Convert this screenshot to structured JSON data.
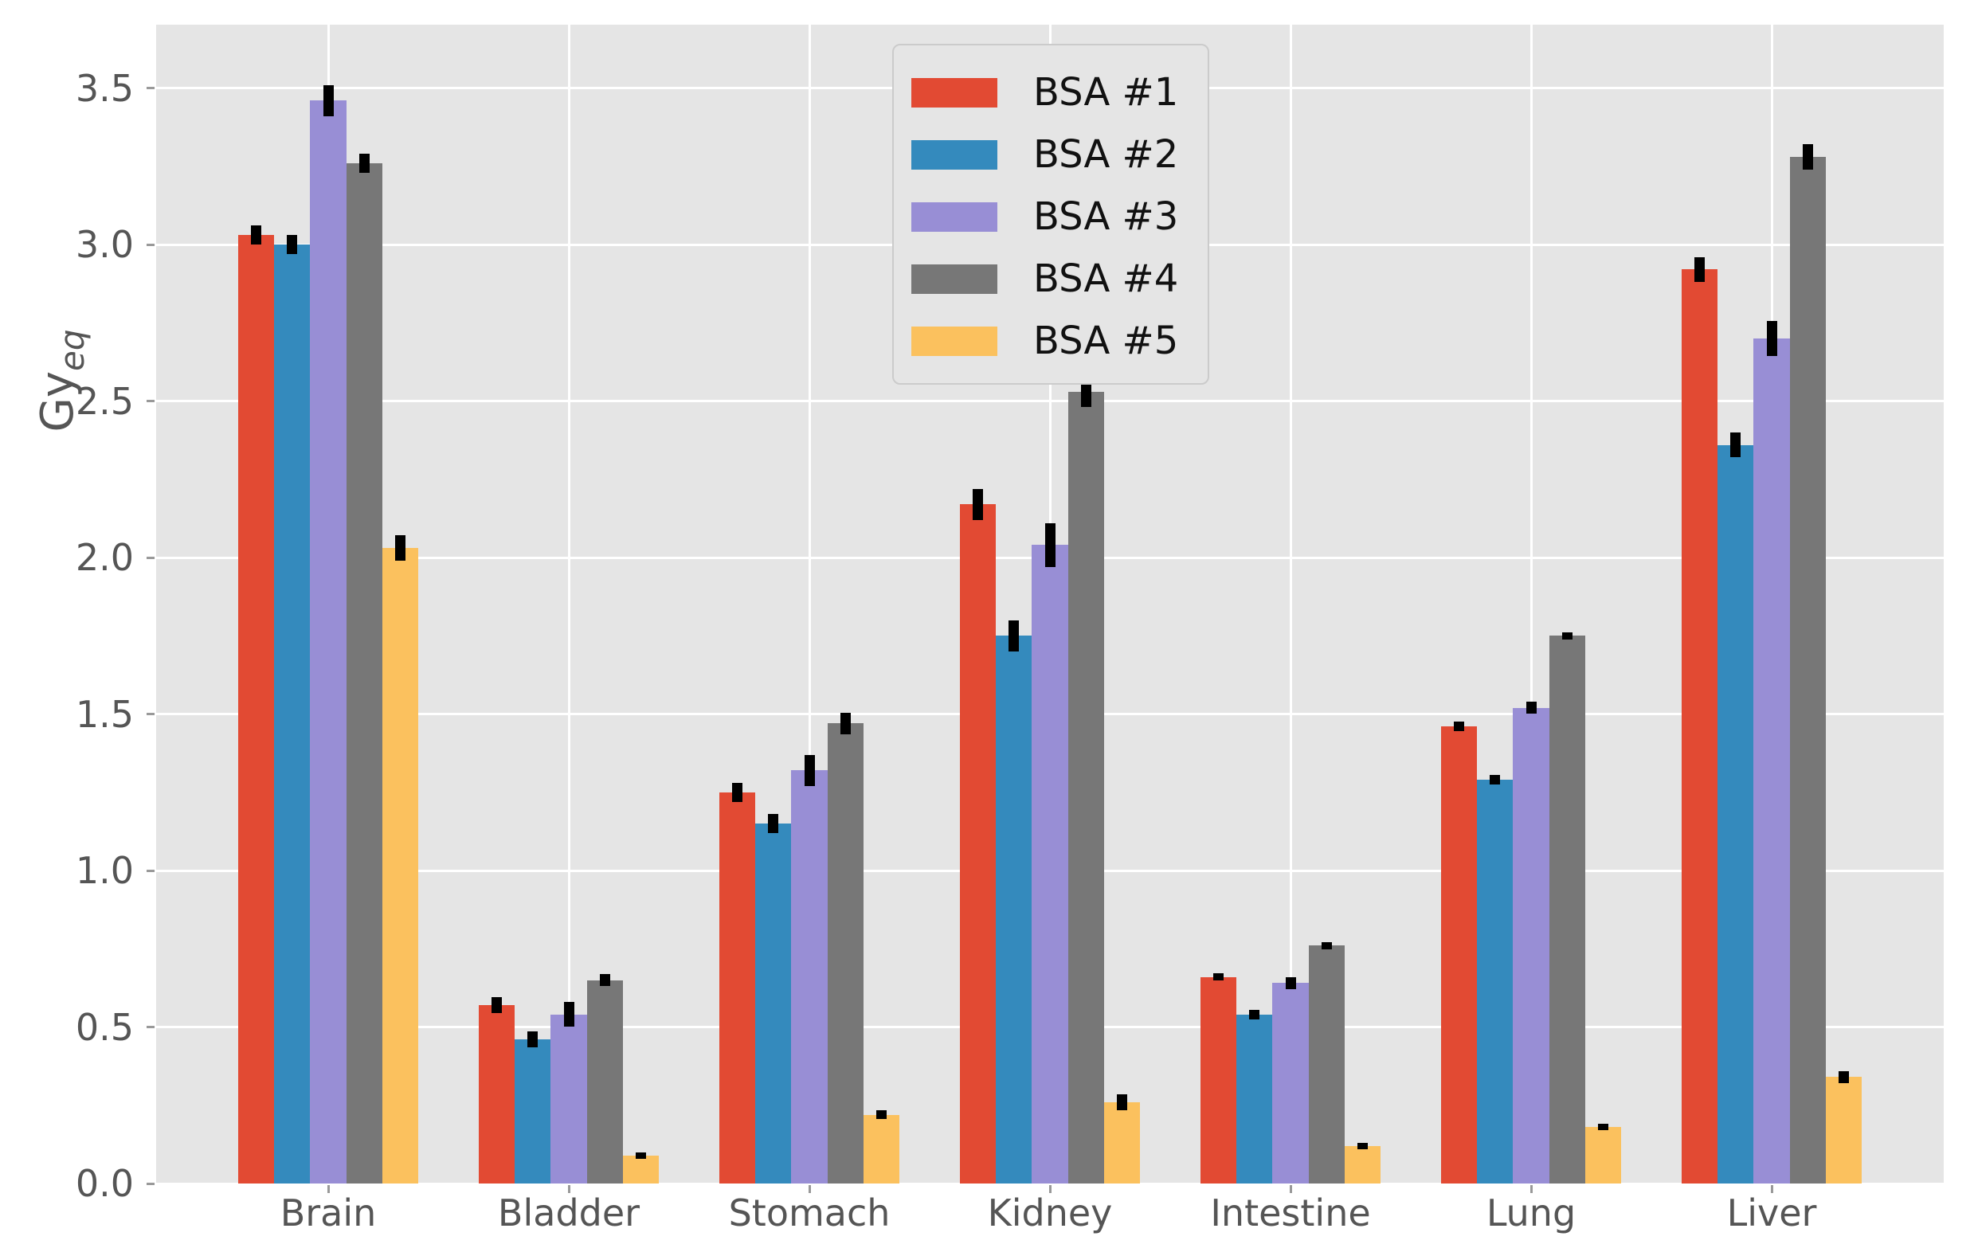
{
  "chart_data": {
    "type": "bar",
    "title": "",
    "xlabel": "",
    "ylabel": "Gy_eq",
    "ylabel_main": "Gy",
    "ylabel_sub": "eq",
    "categories": [
      "Brain",
      "Bladder",
      "Stomach",
      "Kidney",
      "Intestine",
      "Lung",
      "Liver"
    ],
    "series": [
      {
        "name": "BSA #1",
        "color": "#e24a33",
        "values": [
          3.03,
          0.57,
          1.25,
          2.17,
          0.66,
          1.46,
          2.92
        ],
        "errors": [
          0.03,
          0.025,
          0.03,
          0.05,
          0.012,
          0.015,
          0.04
        ]
      },
      {
        "name": "BSA #2",
        "color": "#348abd",
        "values": [
          3.0,
          0.46,
          1.15,
          1.75,
          0.54,
          1.29,
          2.36
        ],
        "errors": [
          0.03,
          0.025,
          0.03,
          0.05,
          0.015,
          0.015,
          0.04
        ]
      },
      {
        "name": "BSA #3",
        "color": "#988ed5",
        "values": [
          3.46,
          0.54,
          1.32,
          2.04,
          0.64,
          1.52,
          2.7
        ],
        "errors": [
          0.05,
          0.04,
          0.05,
          0.07,
          0.02,
          0.02,
          0.055
        ]
      },
      {
        "name": "BSA #4",
        "color": "#777777",
        "values": [
          3.26,
          0.65,
          1.47,
          2.53,
          0.76,
          1.75,
          3.28
        ],
        "errors": [
          0.03,
          0.02,
          0.035,
          0.05,
          0.012,
          0.012,
          0.04
        ]
      },
      {
        "name": "BSA #5",
        "color": "#fbc15e",
        "values": [
          2.03,
          0.09,
          0.22,
          0.26,
          0.12,
          0.18,
          0.34
        ],
        "errors": [
          0.04,
          0.01,
          0.015,
          0.025,
          0.01,
          0.01,
          0.02
        ]
      }
    ],
    "y_ticks": [
      "0.0",
      "0.5",
      "1.0",
      "1.5",
      "2.0",
      "2.5",
      "3.0",
      "3.5"
    ],
    "ylim": [
      0,
      3.71
    ],
    "grid": true,
    "grid_color": "#ffffff",
    "plot_background": "#e5e5e5",
    "figure_background": "#ffffff",
    "tick_label_color": "#555555",
    "error_bar_color": "#000000",
    "legend_position": "upper center",
    "legend_labels": [
      "BSA #1",
      "BSA #2",
      "BSA #3",
      "BSA #4",
      "BSA #5"
    ]
  }
}
